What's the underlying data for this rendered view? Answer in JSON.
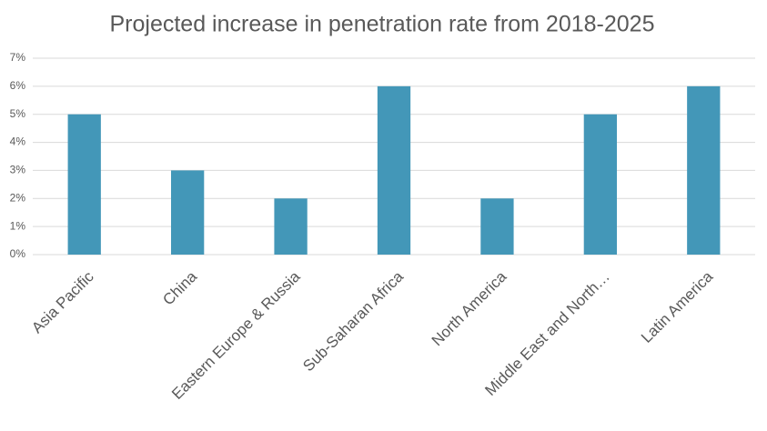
{
  "chart_data": {
    "type": "bar",
    "title": "Projected increase in penetration rate from 2018-2025",
    "categories": [
      "Asia Pacific",
      "China",
      "Eastern Europe & Russia",
      "Sub-Saharan Africa",
      "North America",
      "Middle East and North…",
      "Latin America"
    ],
    "values": [
      5,
      3,
      2,
      6,
      2,
      5,
      6
    ],
    "color": "#4397b8",
    "ylim": [
      0,
      7
    ],
    "yticks": [
      {
        "value": 0,
        "label": "0%"
      },
      {
        "value": 1,
        "label": "1%"
      },
      {
        "value": 2,
        "label": "2%"
      },
      {
        "value": 3,
        "label": "3%"
      },
      {
        "value": 4,
        "label": "4%"
      },
      {
        "value": 5,
        "label": "5%"
      },
      {
        "value": 6,
        "label": "6%"
      },
      {
        "value": 7,
        "label": "7%"
      }
    ],
    "grid": true
  }
}
